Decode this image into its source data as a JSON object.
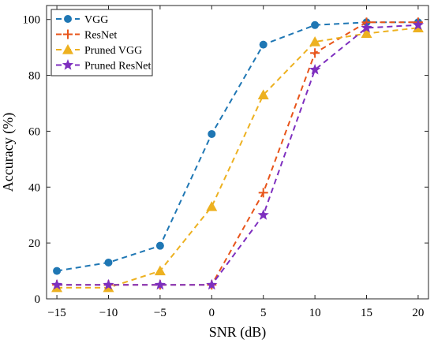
{
  "chart_data": {
    "type": "line",
    "xlabel": "SNR (dB)",
    "ylabel": "Accuracy (%)",
    "x": [
      -15,
      -10,
      -5,
      0,
      5,
      10,
      15,
      20
    ],
    "xlim": [
      -16,
      21
    ],
    "ylim": [
      0,
      105
    ],
    "xticks": [
      -15,
      -10,
      -5,
      0,
      5,
      10,
      15,
      20
    ],
    "yticks": [
      0,
      20,
      40,
      60,
      80,
      100
    ],
    "xtick_labels": [
      "−15",
      "−10",
      "−5",
      "0",
      "5",
      "10",
      "15",
      "20"
    ],
    "ytick_labels": [
      "0",
      "20",
      "40",
      "60",
      "80",
      "100"
    ],
    "grid": false,
    "legend_position": "top-left",
    "series": [
      {
        "name": "VGG",
        "values": [
          10,
          13,
          19,
          59,
          91,
          98,
          99,
          99
        ],
        "color": "#1f77b4",
        "marker": "circle"
      },
      {
        "name": "ResNet",
        "values": [
          5,
          5,
          5,
          5,
          38,
          88,
          99,
          99
        ],
        "color": "#e8541a",
        "marker": "plus"
      },
      {
        "name": "Pruned VGG",
        "values": [
          4,
          4,
          10,
          33,
          73,
          92,
          95,
          97
        ],
        "color": "#edb120",
        "marker": "triangle"
      },
      {
        "name": "Pruned ResNet",
        "values": [
          5,
          5,
          5,
          5,
          30,
          82,
          97,
          98
        ],
        "color": "#7e2fbf",
        "marker": "star"
      }
    ]
  }
}
